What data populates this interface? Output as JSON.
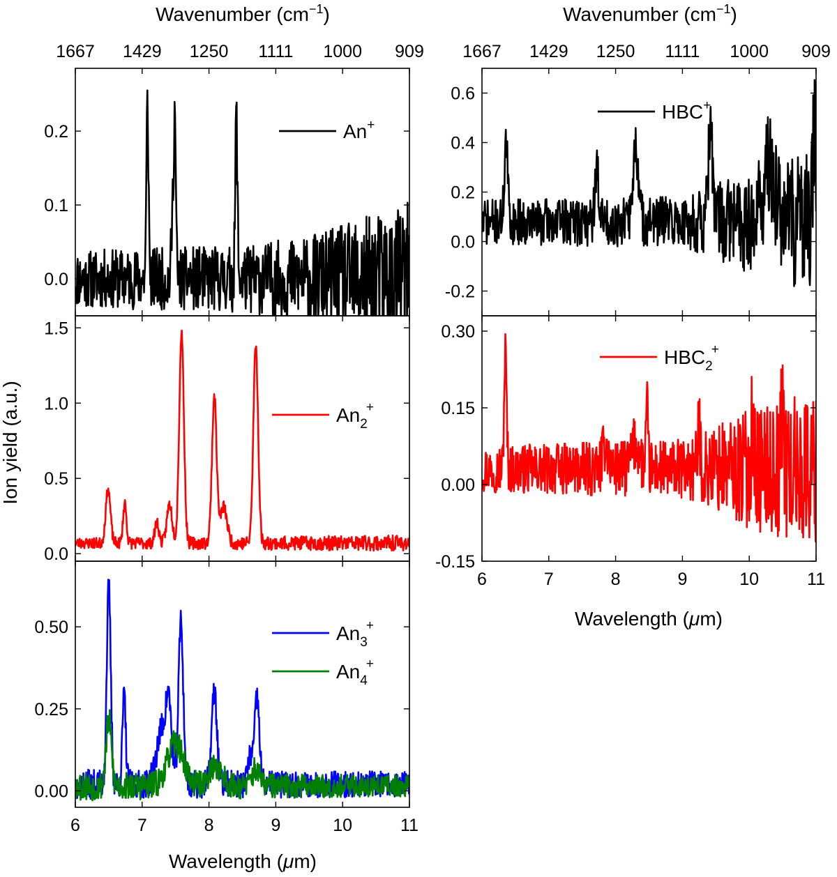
{
  "figure": {
    "top_axis_title": "Wavenumber (cm",
    "top_axis_title_sup": "−1",
    "top_axis_title_end": ")",
    "ylabel": "Ion yield (a.u.)",
    "xlabel_pre": "Wavelength (",
    "xlabel_mu": "μ",
    "xlabel_post": "m)"
  },
  "chart_data": [
    {
      "id": "anthracene-monomer",
      "type": "line",
      "xlabel": "",
      "ylabel": "Ion yield (a.u.)",
      "top_xlabel": "Wavenumber (cm−1)",
      "xlim": [
        6,
        11
      ],
      "ylim": [
        -0.05,
        0.285
      ],
      "x_ticks": [
        6,
        7,
        8,
        9,
        10,
        11
      ],
      "y_ticks": [
        "0.0",
        "0.1",
        "0.2"
      ],
      "top_ticks": [
        "1667",
        "1429",
        "1250",
        "1111",
        "1000",
        "909"
      ],
      "legend_position": "top-right",
      "series": [
        {
          "name": "An",
          "name_sub": "",
          "name_sup": "+",
          "color": "#000000",
          "baseline": 0.0,
          "noise": [
            [
              6,
              0.03
            ],
            [
              8.5,
              0.035
            ],
            [
              9.5,
              0.045
            ],
            [
              11,
              0.08
            ]
          ],
          "seed": 11,
          "peaks": [
            [
              7.08,
              0.235,
              0.016
            ],
            [
              7.46,
              0.09,
              0.02
            ],
            [
              7.49,
              0.195,
              0.015
            ],
            [
              8.41,
              0.22,
              0.016
            ]
          ]
        }
      ]
    },
    {
      "id": "anthracene-dimer",
      "type": "line",
      "xlim": [
        6,
        11
      ],
      "ylim": [
        -0.05,
        1.58
      ],
      "x_ticks": [
        6,
        7,
        8,
        9,
        10,
        11
      ],
      "y_ticks": [
        "0.0",
        "0.5",
        "1.0",
        "1.5"
      ],
      "legend_position": "right",
      "series": [
        {
          "name": "An",
          "name_sub": "2",
          "name_sup": "+",
          "color": "#ff0000",
          "baseline": 0.07,
          "noise": [
            [
              6,
              0.028
            ],
            [
              11,
              0.04
            ]
          ],
          "seed": 23,
          "peaks": [
            [
              6.49,
              0.36,
              0.035
            ],
            [
              6.74,
              0.27,
              0.025
            ],
            [
              7.22,
              0.14,
              0.03
            ],
            [
              7.41,
              0.26,
              0.04
            ],
            [
              7.59,
              1.4,
              0.035
            ],
            [
              8.08,
              0.97,
              0.035
            ],
            [
              8.22,
              0.24,
              0.05
            ],
            [
              8.7,
              1.32,
              0.035
            ]
          ]
        }
      ]
    },
    {
      "id": "anthracene-clusters",
      "type": "line",
      "xlim": [
        6,
        11
      ],
      "ylim": [
        -0.05,
        0.7
      ],
      "x_ticks": [
        6,
        7,
        8,
        9,
        10,
        11
      ],
      "x_tick_labels": [
        "6",
        "7",
        "8",
        "9",
        "10",
        "11"
      ],
      "y_ticks": [
        "0.00",
        "0.25",
        "0.50"
      ],
      "xlabel": "Wavelength (μm)",
      "legend_position": "right",
      "series": [
        {
          "name": "An",
          "name_sub": "3",
          "name_sup": "+",
          "color": "#0000ff",
          "baseline": 0.02,
          "noise": [
            [
              6,
              0.035
            ],
            [
              11,
              0.03
            ]
          ],
          "seed": 37,
          "peaks": [
            [
              6.5,
              0.6,
              0.03
            ],
            [
              6.73,
              0.27,
              0.025
            ],
            [
              7.3,
              0.17,
              0.08
            ],
            [
              7.4,
              0.2,
              0.04
            ],
            [
              7.58,
              0.5,
              0.035
            ],
            [
              8.08,
              0.28,
              0.04
            ],
            [
              8.72,
              0.26,
              0.035
            ],
            [
              8.62,
              0.08,
              0.04
            ]
          ]
        },
        {
          "name": "An",
          "name_sub": "4",
          "name_sup": "+",
          "color": "#008000",
          "baseline": 0.015,
          "noise": [
            [
              6,
              0.035
            ],
            [
              11,
              0.025
            ]
          ],
          "seed": 53,
          "peaks": [
            [
              6.5,
              0.2,
              0.04
            ],
            [
              7.5,
              0.13,
              0.12
            ],
            [
              8.1,
              0.06,
              0.1
            ],
            [
              8.7,
              0.05,
              0.06
            ]
          ]
        }
      ]
    },
    {
      "id": "hbc-monomer",
      "type": "line",
      "xlim": [
        6,
        11
      ],
      "ylim": [
        -0.3,
        0.7
      ],
      "x_ticks": [
        6,
        7,
        8,
        9,
        10,
        11
      ],
      "y_ticks": [
        "-0.2",
        "0.0",
        "0.2",
        "0.4",
        "0.6"
      ],
      "top_xlabel": "Wavenumber (cm−1)",
      "top_ticks": [
        "1667",
        "1429",
        "1250",
        "1111",
        "1000",
        "909"
      ],
      "legend_position": "top-right",
      "series": [
        {
          "name": "HBC",
          "name_sub": "",
          "name_sup": "+",
          "color": "#000000",
          "baseline": 0.08,
          "noise": [
            [
              6,
              0.07
            ],
            [
              9,
              0.08
            ],
            [
              10,
              0.16
            ],
            [
              11,
              0.22
            ]
          ],
          "seed": 71,
          "peaks": [
            [
              6.36,
              0.32,
              0.025
            ],
            [
              7.72,
              0.2,
              0.03
            ],
            [
              8.3,
              0.3,
              0.04
            ],
            [
              9.42,
              0.38,
              0.03
            ],
            [
              10.3,
              0.2,
              0.1
            ],
            [
              10.98,
              0.45,
              0.02
            ]
          ]
        }
      ]
    },
    {
      "id": "hbc-dimer",
      "type": "line",
      "xlim": [
        6,
        11
      ],
      "ylim": [
        -0.15,
        0.33
      ],
      "x_ticks": [
        6,
        7,
        8,
        9,
        10,
        11
      ],
      "x_tick_labels": [
        "6",
        "7",
        "8",
        "9",
        "10",
        "11"
      ],
      "y_ticks": [
        "-0.15",
        "0.00",
        "0.15",
        "0.30"
      ],
      "xlabel": "Wavelength (μm)",
      "legend_position": "top-right",
      "series": [
        {
          "name": "HBC",
          "name_sub": "2",
          "name_sup": "+",
          "color": "#ff0000",
          "baseline": 0.03,
          "noise": [
            [
              6,
              0.035
            ],
            [
              9,
              0.045
            ],
            [
              10,
              0.09
            ],
            [
              11,
              0.12
            ]
          ],
          "seed": 97,
          "peaks": [
            [
              6.35,
              0.23,
              0.018
            ],
            [
              7.85,
              0.05,
              0.04
            ],
            [
              8.3,
              0.05,
              0.06
            ],
            [
              8.47,
              0.12,
              0.015
            ],
            [
              9.25,
              0.08,
              0.02
            ],
            [
              10.05,
              0.1,
              0.02
            ],
            [
              10.5,
              0.12,
              0.02
            ]
          ]
        }
      ]
    }
  ]
}
